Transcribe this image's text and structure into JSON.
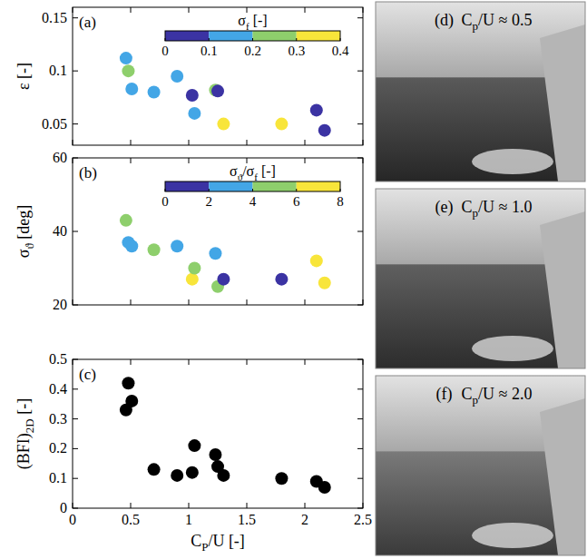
{
  "chart_data": [
    {
      "type": "scatter",
      "panel_label": "(a)",
      "ylabel": [
        {
          "text": "ε [-]"
        }
      ],
      "x": [
        0.46,
        0.48,
        0.51,
        0.7,
        0.9,
        1.03,
        1.05,
        1.23,
        1.25,
        1.3,
        1.8,
        2.1,
        2.17
      ],
      "series": [
        {
          "marker": "circle",
          "values": [
            0.112,
            0.1,
            0.083,
            0.08,
            0.095,
            0.077,
            0.06,
            0.082,
            0.081,
            0.05,
            0.05,
            0.063,
            0.044
          ],
          "colors": [
            "#43a6e6",
            "#8ecf6c",
            "#43a6e6",
            "#43a6e6",
            "#43a6e6",
            "#3b33a3",
            "#43a6e6",
            "#8ecf6c",
            "#3b33a3",
            "#f8e53a",
            "#f8e53a",
            "#3b33a3",
            "#3b33a3"
          ]
        }
      ],
      "colorbar": {
        "label": [
          {
            "text": "σ"
          },
          {
            "text": "f",
            "sub": true
          },
          {
            "text": " [-]"
          }
        ],
        "range": [
          0,
          0.4
        ],
        "ticks": [
          0,
          0.1,
          0.2,
          0.3,
          0.4
        ],
        "colors": [
          "#3b33a3",
          "#43a6e6",
          "#8ecf6c",
          "#f8e53a"
        ]
      },
      "xlim": [
        0,
        2.5
      ],
      "xticks": [
        0,
        0.5,
        1,
        1.5,
        2,
        2.5
      ],
      "ylim": [
        0.03,
        0.16
      ],
      "yticks": [
        0.05,
        0.1,
        0.15
      ],
      "tick_labels": "y",
      "grid": false
    },
    {
      "type": "scatter",
      "panel_label": "(b)",
      "ylabel": [
        {
          "text": "σ"
        },
        {
          "text": "ϑ",
          "sub": true
        },
        {
          "text": " [deg]"
        }
      ],
      "x": [
        0.46,
        0.48,
        0.51,
        0.7,
        0.9,
        1.03,
        1.05,
        1.23,
        1.25,
        1.3,
        1.8,
        2.1,
        2.17
      ],
      "series": [
        {
          "marker": "circle",
          "values": [
            43,
            37,
            36,
            35,
            36,
            27,
            30,
            34,
            25,
            27,
            27,
            32,
            26
          ],
          "colors": [
            "#8ecf6c",
            "#43a6e6",
            "#43a6e6",
            "#8ecf6c",
            "#43a6e6",
            "#f8e53a",
            "#8ecf6c",
            "#43a6e6",
            "#8ecf6c",
            "#3b33a3",
            "#3b33a3",
            "#f8e53a",
            "#f8e53a"
          ]
        }
      ],
      "colorbar": {
        "label": [
          {
            "text": "σ"
          },
          {
            "text": "ϑ",
            "sub": true
          },
          {
            "text": "/σ"
          },
          {
            "text": "f",
            "sub": true
          },
          {
            "text": " [-]"
          }
        ],
        "range": [
          0,
          8
        ],
        "ticks": [
          0,
          2,
          4,
          6,
          8
        ],
        "colors": [
          "#3b33a3",
          "#43a6e6",
          "#8ecf6c",
          "#f8e53a"
        ]
      },
      "xlim": [
        0,
        2.5
      ],
      "xticks": [
        0,
        0.5,
        1,
        1.5,
        2,
        2.5
      ],
      "ylim": [
        20,
        60
      ],
      "yticks": [
        20,
        40,
        60
      ],
      "tick_labels": "y",
      "grid": false
    },
    {
      "type": "scatter",
      "panel_label": "(c)",
      "ylabel": [
        {
          "text": "(BFI)"
        },
        {
          "text": "2D",
          "sub": true
        },
        {
          "text": " [-]"
        }
      ],
      "xlabel": [
        {
          "text": "C"
        },
        {
          "text": "P",
          "sub": true
        },
        {
          "text": "/U [-]"
        }
      ],
      "x": [
        0.46,
        0.48,
        0.51,
        0.7,
        0.9,
        1.03,
        1.05,
        1.23,
        1.25,
        1.3,
        1.8,
        2.1,
        2.17
      ],
      "series": [
        {
          "marker": "circle",
          "color": "#000000",
          "values": [
            0.33,
            0.42,
            0.36,
            0.13,
            0.11,
            0.12,
            0.21,
            0.18,
            0.14,
            0.11,
            0.1,
            0.09,
            0.07
          ]
        }
      ],
      "xlim": [
        0,
        2.5
      ],
      "xticks": [
        0,
        0.5,
        1,
        1.5,
        2,
        2.5
      ],
      "ylim": [
        0,
        0.5
      ],
      "yticks": [
        0,
        0.1,
        0.2,
        0.3,
        0.4,
        0.5
      ],
      "tick_labels": true,
      "grid": false
    }
  ],
  "photos": [
    {
      "label": "(d)",
      "caption": [
        {
          "text": "C"
        },
        {
          "text": "p",
          "sub": true
        },
        {
          "text": "/U ≈ 0.5"
        }
      ]
    },
    {
      "label": "(e)",
      "caption": [
        {
          "text": "C"
        },
        {
          "text": "p",
          "sub": true
        },
        {
          "text": "/U ≈ 1.0"
        }
      ]
    },
    {
      "label": "(f)",
      "caption": [
        {
          "text": "C"
        },
        {
          "text": "p",
          "sub": true
        },
        {
          "text": "/U ≈ 2.0"
        }
      ]
    }
  ]
}
